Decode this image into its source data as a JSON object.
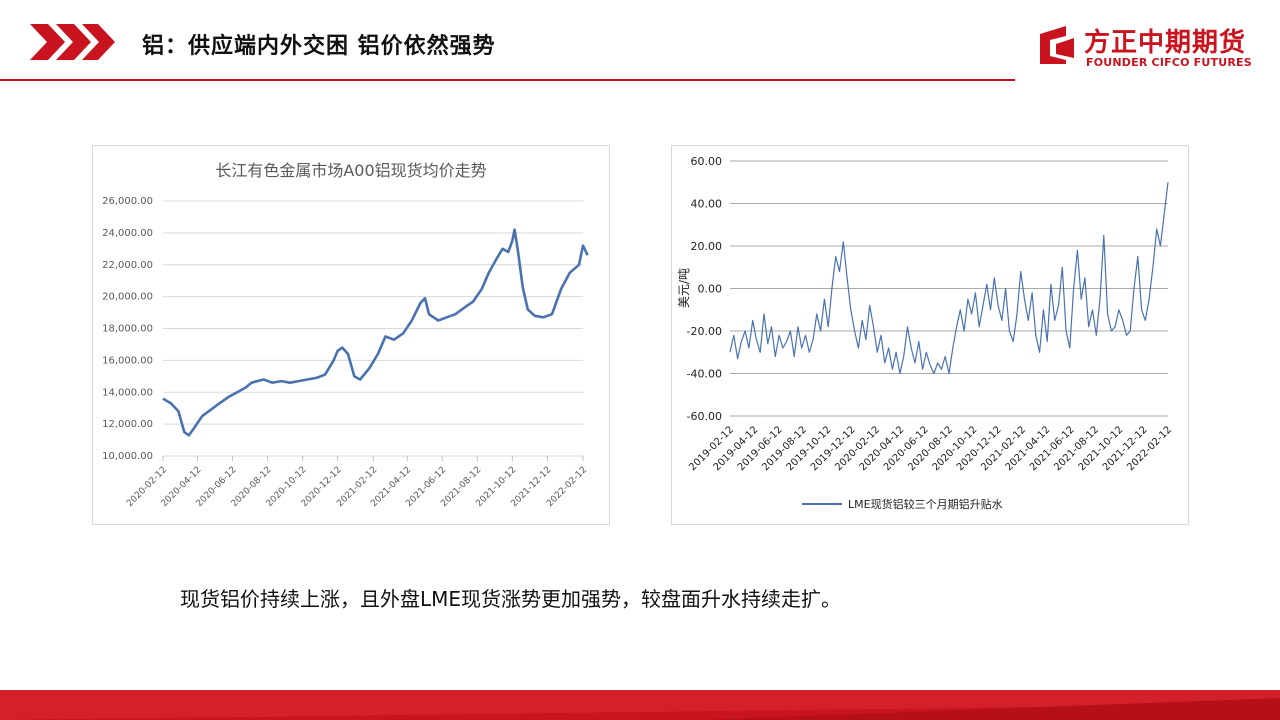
{
  "header": {
    "title": "铝：供应端内外交困 铝价依然强势",
    "logo_cn": "方正中期期货",
    "logo_en": "FOUNDER CIFCO FUTURES",
    "accent_color": "#c9141f"
  },
  "caption": "现货铝价持续上涨，且外盘LME现货涨势更加强势，较盘面升水持续走扩。",
  "chart_data": [
    {
      "type": "line",
      "title": "长江有色金属市场A00铝现货均价走势",
      "xlabel": "",
      "ylabel": "",
      "ylim": [
        10000,
        26000
      ],
      "yticks": [
        "10,000.00",
        "12,000.00",
        "14,000.00",
        "16,000.00",
        "18,000.00",
        "20,000.00",
        "22,000.00",
        "24,000.00",
        "26,000.00"
      ],
      "xticks": [
        "2020-02-12",
        "2020-04-12",
        "2020-06-12",
        "2020-08-12",
        "2020-10-12",
        "2020-12-12",
        "2021-02-12",
        "2021-04-12",
        "2021-06-12",
        "2021-08-12",
        "2021-10-12",
        "2021-12-12",
        "2022-02-12"
      ],
      "grid": true,
      "line_color": "#4a72b0",
      "series": [
        {
          "x": [
            "2020-02-12",
            "2020-02-26",
            "2020-03-10",
            "2020-03-20",
            "2020-03-28",
            "2020-04-05",
            "2020-04-20",
            "2020-05-05",
            "2020-05-20",
            "2020-06-05",
            "2020-06-20",
            "2020-07-05",
            "2020-07-15",
            "2020-07-25",
            "2020-08-05",
            "2020-08-20",
            "2020-09-05",
            "2020-09-20",
            "2020-10-05",
            "2020-10-20",
            "2020-11-05",
            "2020-11-20",
            "2020-12-05",
            "2020-12-12",
            "2020-12-20",
            "2020-12-30",
            "2021-01-10",
            "2021-01-20",
            "2021-02-05",
            "2021-02-20",
            "2021-03-05",
            "2021-03-20",
            "2021-04-05",
            "2021-04-20",
            "2021-05-05",
            "2021-05-13",
            "2021-05-20",
            "2021-06-05",
            "2021-06-20",
            "2021-07-05",
            "2021-07-20",
            "2021-08-05",
            "2021-08-20",
            "2021-09-01",
            "2021-09-15",
            "2021-09-25",
            "2021-10-05",
            "2021-10-12",
            "2021-10-16",
            "2021-10-22",
            "2021-10-30",
            "2021-11-08",
            "2021-11-20",
            "2021-12-05",
            "2021-12-20",
            "2022-01-05",
            "2022-01-20",
            "2022-02-05",
            "2022-02-12",
            "2022-02-20"
          ],
          "values": [
            13600,
            13300,
            12800,
            11500,
            11300,
            11700,
            12500,
            12900,
            13300,
            13700,
            14000,
            14300,
            14600,
            14700,
            14800,
            14600,
            14700,
            14600,
            14700,
            14800,
            14900,
            15100,
            16000,
            16600,
            16800,
            16400,
            15000,
            14800,
            15500,
            16400,
            17500,
            17300,
            17700,
            18500,
            19600,
            19900,
            18900,
            18500,
            18700,
            18900,
            19300,
            19700,
            20500,
            21500,
            22400,
            23000,
            22800,
            23500,
            24200,
            22800,
            20600,
            19200,
            18800,
            18700,
            18900,
            20500,
            21500,
            22000,
            23200,
            22600
          ]
        }
      ]
    },
    {
      "type": "line",
      "title": "",
      "xlabel": "",
      "ylabel": "美元/吨",
      "ylim": [
        -60,
        60
      ],
      "yticks": [
        "60.00",
        "40.00",
        "20.00",
        "0.00",
        "-20.00",
        "-40.00",
        "-60.00"
      ],
      "xticks": [
        "2019-02-12",
        "2019-04-12",
        "2019-06-12",
        "2019-08-12",
        "2019-10-12",
        "2019-12-12",
        "2020-02-12",
        "2020-04-12",
        "2020-06-12",
        "2020-08-12",
        "2020-10-12",
        "2020-12-12",
        "2021-02-12",
        "2021-04-12",
        "2021-06-12",
        "2021-08-12",
        "2021-10-12",
        "2021-12-12",
        "2022-02-12"
      ],
      "grid": true,
      "legend": "bottom",
      "line_color": "#4a72b0",
      "series": [
        {
          "name": "LME现货铝较三个月期铝升贴水",
          "values": [
            -30,
            -22,
            -33,
            -25,
            -20,
            -28,
            -15,
            -24,
            -30,
            -12,
            -26,
            -18,
            -32,
            -22,
            -28,
            -25,
            -20,
            -32,
            -18,
            -28,
            -22,
            -30,
            -24,
            -12,
            -20,
            -5,
            -18,
            0,
            15,
            8,
            22,
            5,
            -10,
            -20,
            -28,
            -15,
            -24,
            -8,
            -18,
            -30,
            -22,
            -35,
            -28,
            -38,
            -30,
            -40,
            -32,
            -18,
            -28,
            -35,
            -25,
            -38,
            -30,
            -36,
            -40,
            -35,
            -38,
            -32,
            -40,
            -28,
            -18,
            -10,
            -20,
            -5,
            -12,
            -2,
            -18,
            -8,
            2,
            -10,
            5,
            -8,
            -15,
            0,
            -20,
            -25,
            -12,
            8,
            -5,
            -15,
            -2,
            -22,
            -30,
            -10,
            -25,
            2,
            -15,
            -8,
            10,
            -20,
            -28,
            0,
            18,
            -5,
            5,
            -18,
            -10,
            -22,
            -5,
            25,
            -12,
            -20,
            -18,
            -10,
            -15,
            -22,
            -20,
            0,
            15,
            -10,
            -15,
            -5,
            10,
            28,
            20,
            35,
            50
          ]
        }
      ]
    }
  ]
}
